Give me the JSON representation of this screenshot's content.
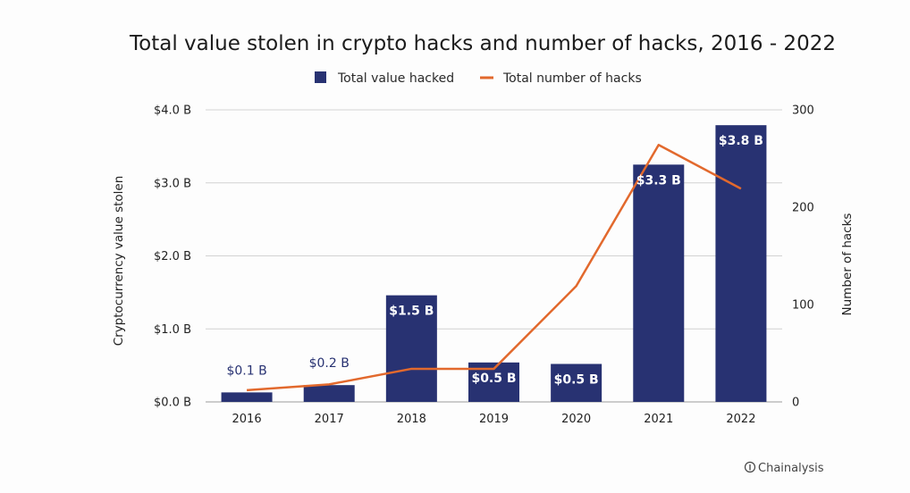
{
  "chart_data": {
    "type": "bar",
    "title": "Total value stolen in crypto hacks and number of hacks, 2016 - 2022",
    "categories": [
      "2016",
      "2017",
      "2018",
      "2019",
      "2020",
      "2021",
      "2022"
    ],
    "series": [
      {
        "name": "Total value hacked",
        "type": "bar",
        "axis": "left",
        "values": [
          0.13,
          0.23,
          1.46,
          0.54,
          0.52,
          3.25,
          3.79
        ],
        "data_labels": [
          "$0.1 B",
          "$0.2 B",
          "$1.5 B",
          "$0.5 B",
          "$0.5 B",
          "$3.3 B",
          "$3.8 B"
        ],
        "color": "#283272"
      },
      {
        "name": "Total number of hacks",
        "type": "line",
        "axis": "right",
        "values": [
          12,
          18,
          34,
          34,
          119,
          264,
          219
        ],
        "color": "#e2692d"
      }
    ],
    "ylabel": "Cryptocurrency value stolen",
    "ylabel_right": "Number of hacks",
    "ylim": [
      0,
      4
    ],
    "ylim_right": [
      0,
      300
    ],
    "yticks": [
      "$0.0 B",
      "$1.0 B",
      "$2.0 B",
      "$3.0 B",
      "$4.0 B"
    ],
    "yticks_right": [
      "0",
      "100",
      "200",
      "300"
    ],
    "grid": true,
    "legend_position": "top-center",
    "source": "Chainalysis"
  }
}
